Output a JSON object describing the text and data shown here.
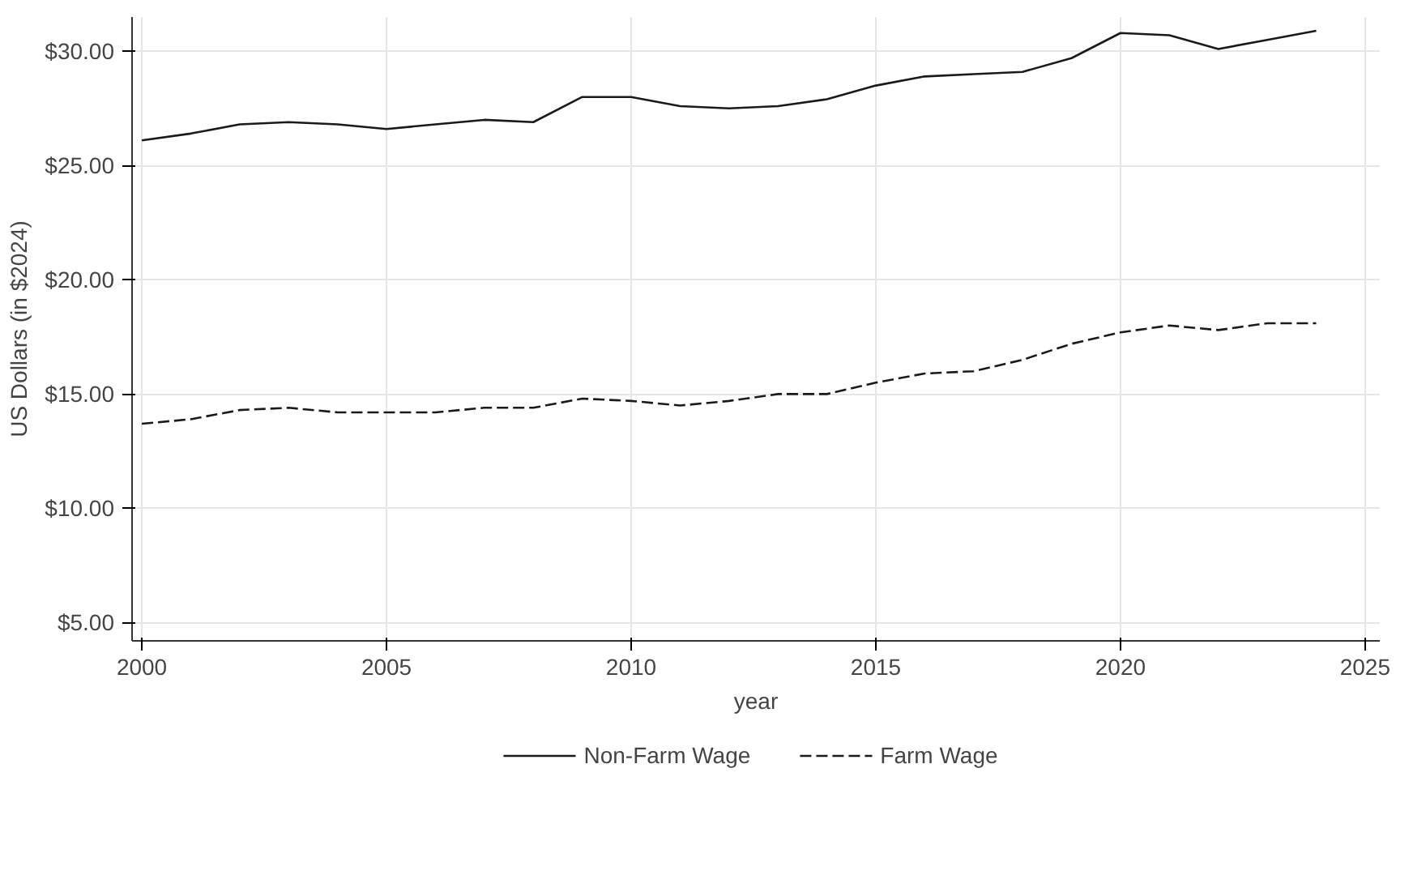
{
  "chart_data": {
    "type": "line",
    "xlabel": "year",
    "ylabel": "US Dollars (in $2024)",
    "x": [
      2000,
      2001,
      2002,
      2003,
      2004,
      2005,
      2006,
      2007,
      2008,
      2009,
      2010,
      2011,
      2012,
      2013,
      2014,
      2015,
      2016,
      2017,
      2018,
      2019,
      2020,
      2021,
      2022,
      2023,
      2024
    ],
    "series": [
      {
        "name": "Non-Farm Wage",
        "color": "#1a1a1a",
        "line_style": "solid",
        "values": [
          26.1,
          26.4,
          26.8,
          26.9,
          26.8,
          26.6,
          26.8,
          27.0,
          26.9,
          28.0,
          28.0,
          27.6,
          27.5,
          27.6,
          27.9,
          28.5,
          28.9,
          29.0,
          29.1,
          29.7,
          30.8,
          30.7,
          30.1,
          30.5,
          30.9
        ]
      },
      {
        "name": "Farm Wage",
        "color": "#1a1a1a",
        "line_style": "dashed",
        "values": [
          13.7,
          13.9,
          14.3,
          14.4,
          14.2,
          14.2,
          14.2,
          14.4,
          14.4,
          14.8,
          14.7,
          14.5,
          14.7,
          15.0,
          15.0,
          15.5,
          15.9,
          16.0,
          16.5,
          17.2,
          17.7,
          18.0,
          17.8,
          18.1,
          18.1
        ]
      }
    ],
    "xlim": [
      1999.8,
      2025.3
    ],
    "ylim": [
      4.2,
      31.5
    ],
    "xticks": [
      2000,
      2005,
      2010,
      2015,
      2020,
      2025
    ],
    "yticks": [
      {
        "value": 5,
        "label": "$5.00"
      },
      {
        "value": 10,
        "label": "$10.00"
      },
      {
        "value": 15,
        "label": "$15.00"
      },
      {
        "value": 20,
        "label": "$20.00"
      },
      {
        "value": 25,
        "label": "$25.00"
      },
      {
        "value": 30,
        "label": "$30.00"
      }
    ],
    "grid": true,
    "legend": "bottom",
    "marker": "none"
  }
}
